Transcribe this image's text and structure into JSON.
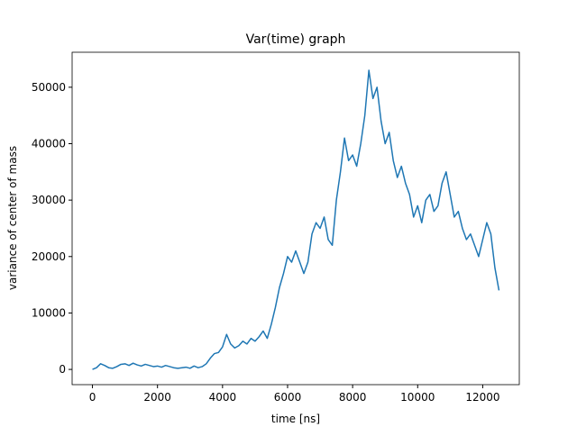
{
  "chart_data": {
    "type": "line",
    "title": "Var(time) graph",
    "xlabel": "time [ns]",
    "ylabel": "variance of center of mass",
    "color": "#1f77b4",
    "x": [
      0,
      125,
      250,
      375,
      500,
      625,
      750,
      875,
      1000,
      1125,
      1250,
      1375,
      1500,
      1625,
      1750,
      1875,
      2000,
      2125,
      2250,
      2375,
      2500,
      2625,
      2750,
      2875,
      3000,
      3125,
      3250,
      3375,
      3500,
      3625,
      3750,
      3875,
      4000,
      4125,
      4250,
      4375,
      4500,
      4625,
      4750,
      4875,
      5000,
      5125,
      5250,
      5375,
      5500,
      5625,
      5750,
      5875,
      6000,
      6125,
      6250,
      6375,
      6500,
      6625,
      6750,
      6875,
      7000,
      7125,
      7250,
      7375,
      7500,
      7625,
      7750,
      7875,
      8000,
      8125,
      8250,
      8375,
      8500,
      8625,
      8750,
      8875,
      9000,
      9125,
      9250,
      9375,
      9500,
      9625,
      9750,
      9875,
      10000,
      10125,
      10250,
      10375,
      10500,
      10625,
      10750,
      10875,
      11000,
      11125,
      11250,
      11375,
      11500,
      11625,
      11750,
      11875,
      12000,
      12125,
      12250,
      12375,
      12500
    ],
    "values": [
      0,
      300,
      1000,
      700,
      300,
      200,
      500,
      900,
      1000,
      700,
      1100,
      800,
      600,
      900,
      700,
      500,
      600,
      400,
      700,
      500,
      300,
      200,
      300,
      400,
      200,
      600,
      300,
      500,
      1000,
      2000,
      2800,
      3000,
      4000,
      6200,
      4500,
      3800,
      4200,
      5000,
      4500,
      5500,
      5000,
      5800,
      6800,
      5500,
      8000,
      11000,
      14500,
      17000,
      20000,
      19000,
      21000,
      19000,
      17000,
      19000,
      24000,
      26000,
      25000,
      27000,
      23000,
      22000,
      30000,
      35000,
      41000,
      37000,
      38000,
      36000,
      40000,
      45000,
      53000,
      48000,
      50000,
      44000,
      40000,
      42000,
      37000,
      34000,
      36000,
      33000,
      31000,
      27000,
      29000,
      26000,
      30000,
      31000,
      28000,
      29000,
      33000,
      35000,
      31000,
      27000,
      28000,
      25000,
      23000,
      24000,
      22000,
      20000,
      23000,
      26000,
      24000,
      18000,
      14000
    ],
    "xlim": [
      -625,
      13125
    ],
    "ylim": [
      -2700,
      56200
    ],
    "xticks": [
      0,
      2000,
      4000,
      6000,
      8000,
      10000,
      12000
    ],
    "yticks": [
      0,
      10000,
      20000,
      30000,
      40000,
      50000
    ]
  }
}
